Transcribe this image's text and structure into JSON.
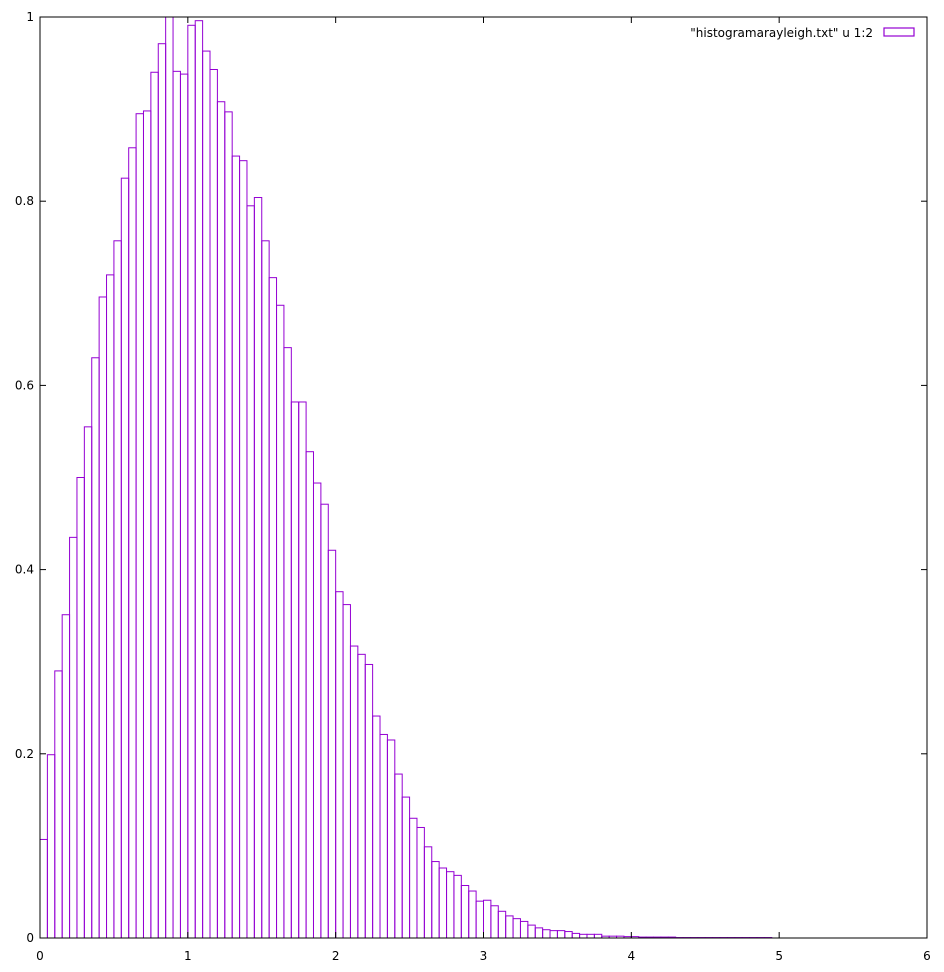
{
  "chart_data": {
    "type": "bar",
    "style": "histogram-steps",
    "xlim": [
      0,
      6
    ],
    "ylim": [
      0,
      1
    ],
    "xticks": [
      "0",
      "1",
      "2",
      "3",
      "4",
      "5",
      "6"
    ],
    "yticks": [
      "0",
      "0.2",
      "0.4",
      "0.6",
      "0.8",
      "1"
    ],
    "grid": false,
    "legend": {
      "position": "top-right",
      "label": "\"histogramarayleigh.txt\" u 1:2"
    },
    "bar_width": 0.05,
    "bar_color": "#9400d3",
    "series": [
      {
        "name": "\"histogramarayleigh.txt\" u 1:2",
        "x": [
          0.025,
          0.075,
          0.125,
          0.175,
          0.225,
          0.275,
          0.325,
          0.375,
          0.425,
          0.475,
          0.525,
          0.575,
          0.625,
          0.675,
          0.725,
          0.775,
          0.825,
          0.875,
          0.925,
          0.975,
          1.025,
          1.075,
          1.125,
          1.175,
          1.225,
          1.275,
          1.325,
          1.375,
          1.425,
          1.475,
          1.525,
          1.575,
          1.625,
          1.675,
          1.725,
          1.775,
          1.825,
          1.875,
          1.925,
          1.975,
          2.025,
          2.075,
          2.125,
          2.175,
          2.225,
          2.275,
          2.325,
          2.375,
          2.425,
          2.475,
          2.525,
          2.575,
          2.625,
          2.675,
          2.725,
          2.775,
          2.825,
          2.875,
          2.925,
          2.975,
          3.025,
          3.075,
          3.125,
          3.175,
          3.225,
          3.275,
          3.325,
          3.375,
          3.425,
          3.475,
          3.525,
          3.575,
          3.625,
          3.675,
          3.725,
          3.775,
          3.825,
          3.875,
          3.925,
          3.975,
          4.025,
          4.075,
          4.125,
          4.175,
          4.225,
          4.275,
          4.325,
          4.375,
          4.425,
          4.475,
          4.525,
          4.575,
          4.625,
          4.675,
          4.725,
          4.775,
          4.825,
          4.875,
          4.925
        ],
        "values": [
          0.107,
          0.199,
          0.29,
          0.351,
          0.435,
          0.5,
          0.555,
          0.63,
          0.696,
          0.72,
          0.757,
          0.825,
          0.858,
          0.895,
          0.898,
          0.94,
          0.971,
          1.0,
          0.941,
          0.938,
          0.991,
          0.996,
          0.963,
          0.943,
          0.908,
          0.897,
          0.849,
          0.844,
          0.795,
          0.804,
          0.757,
          0.717,
          0.687,
          0.641,
          0.582,
          0.582,
          0.528,
          0.494,
          0.471,
          0.421,
          0.376,
          0.362,
          0.317,
          0.308,
          0.297,
          0.241,
          0.221,
          0.215,
          0.178,
          0.153,
          0.13,
          0.12,
          0.099,
          0.083,
          0.076,
          0.072,
          0.068,
          0.057,
          0.051,
          0.04,
          0.041,
          0.035,
          0.029,
          0.024,
          0.021,
          0.018,
          0.014,
          0.011,
          0.009,
          0.008,
          0.008,
          0.007,
          0.005,
          0.004,
          0.004,
          0.004,
          0.002,
          0.002,
          0.002,
          0.0015,
          0.0015,
          0.001,
          0.001,
          0.001,
          0.001,
          0.001,
          0.0005,
          0.0005,
          0.0005,
          0.0005,
          0.0005,
          0.0005,
          0.0005,
          0.0005,
          0.0005,
          0.0005,
          0.0005,
          0.0005,
          0.0005
        ]
      }
    ]
  }
}
